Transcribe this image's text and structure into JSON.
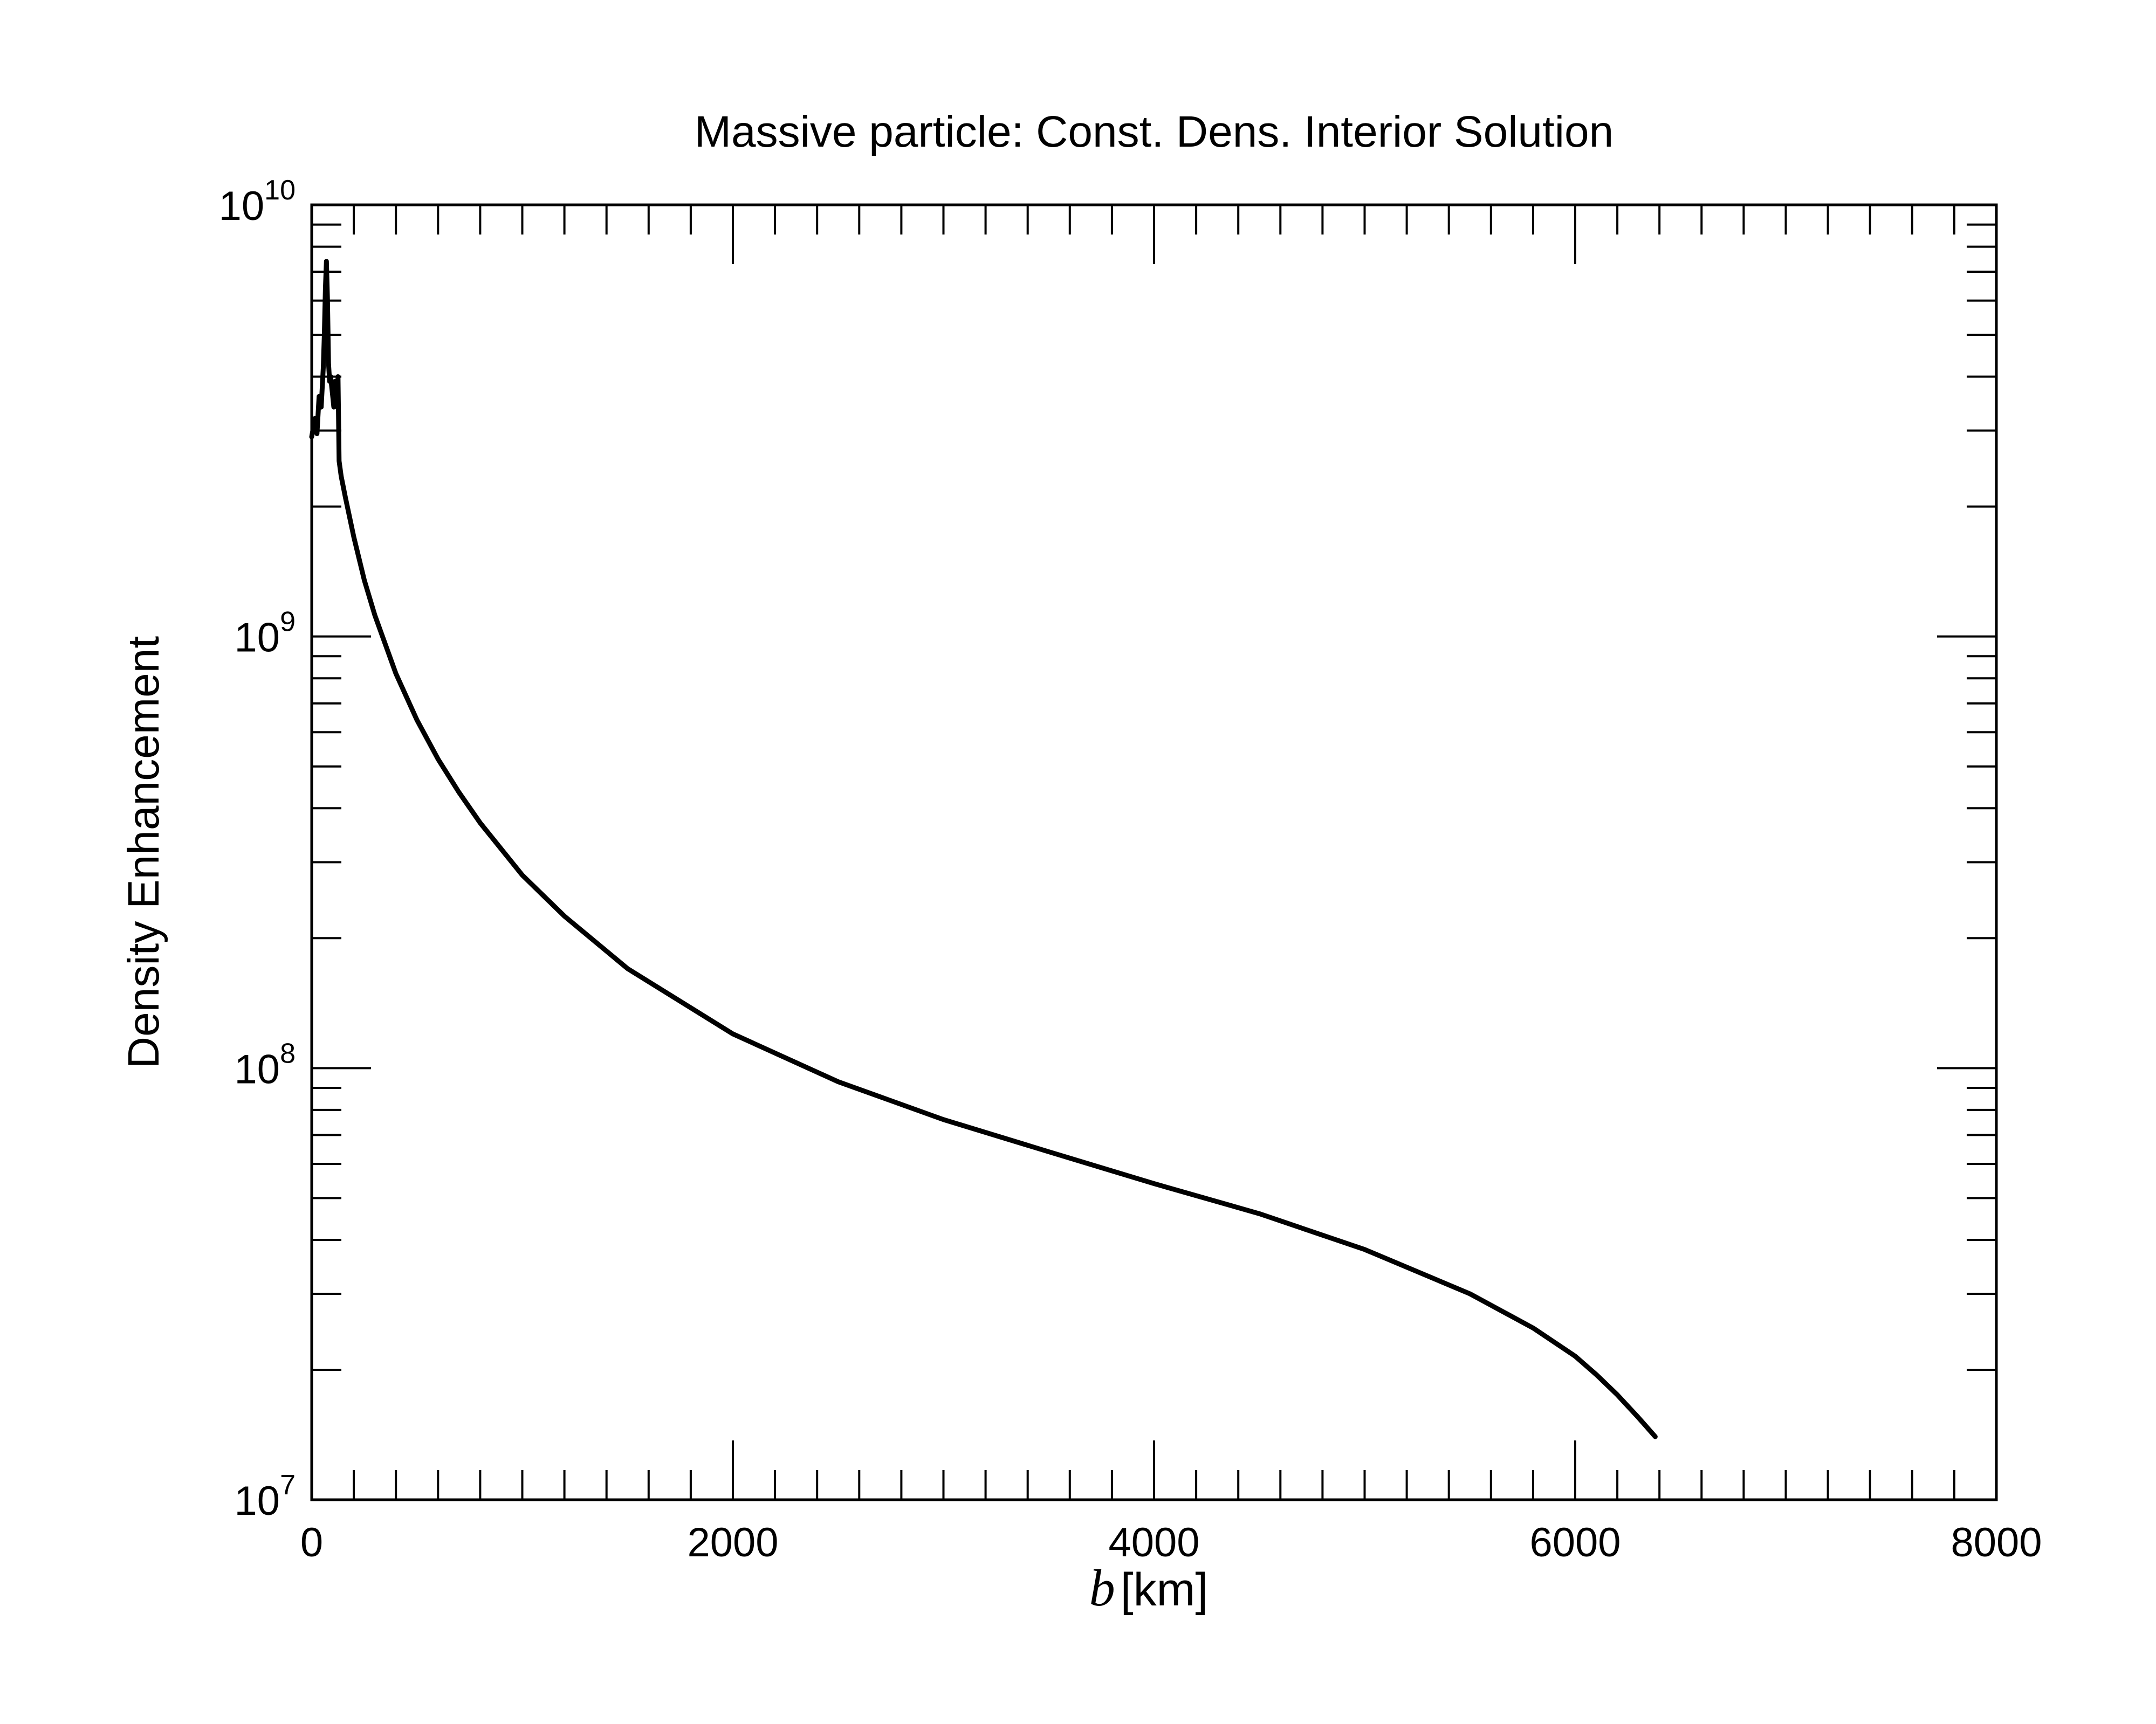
{
  "chart_data": {
    "type": "line",
    "title": "Massive particle: Const. Dens. Interior Solution",
    "xlabel": {
      "symbol": "b",
      "unit": "[km]"
    },
    "ylabel": "Density Enhancement",
    "xlim": [
      0,
      8000
    ],
    "ylim": [
      10000000,
      10000000000
    ],
    "yscale": "log",
    "x_ticks": [
      {
        "value": 0,
        "label": "0"
      },
      {
        "value": 2000,
        "label": "2000"
      },
      {
        "value": 4000,
        "label": "4000"
      },
      {
        "value": 6000,
        "label": "6000"
      },
      {
        "value": 8000,
        "label": "8000"
      }
    ],
    "y_ticks": [
      {
        "value": 10000000,
        "base": "10",
        "exp": "7"
      },
      {
        "value": 100000000,
        "base": "10",
        "exp": "8"
      },
      {
        "value": 1000000000,
        "base": "10",
        "exp": "9"
      },
      {
        "value": 10000000000,
        "base": "10",
        "exp": "10"
      }
    ],
    "grid": false,
    "legend": "none",
    "line_color": "#000000",
    "series": [
      {
        "x": [
          0,
          15,
          25,
          35,
          45,
          55,
          60,
          65,
          70,
          75,
          80,
          85,
          90,
          100,
          105,
          110,
          115,
          120,
          125,
          130,
          140,
          160,
          200,
          250,
          300,
          400,
          500,
          600,
          700,
          800,
          1000,
          1200,
          1500,
          2000,
          2500,
          3000,
          3500,
          4000,
          4500,
          5000,
          5500,
          5800,
          6000,
          6100,
          6200,
          6300,
          6380
        ],
        "y": [
          2900000000.0,
          3200000000.0,
          2950000000.0,
          3600000000.0,
          3400000000.0,
          4200000000.0,
          5000000000.0,
          6400000000.0,
          7400000000.0,
          6000000000.0,
          4300000000.0,
          3900000000.0,
          4000000000.0,
          3600000000.0,
          3400000000.0,
          3900000000.0,
          3900000000.0,
          3400000000.0,
          4000000000.0,
          2550000000.0,
          2350000000.0,
          2100000000.0,
          1700000000.0,
          1350000000.0,
          1120000000.0,
          820000000.0,
          640000000.0,
          520000000.0,
          435000000.0,
          370000000.0,
          280000000.0,
          225000000.0,
          170000000.0,
          120000000.0,
          93000000.0,
          76000000.0,
          64000000.0,
          54000000.0,
          46000000.0,
          38000000.0,
          30000000.0,
          25000000.0,
          21500000.0,
          19500000.0,
          17500000.0,
          15500000.0,
          14000000.0
        ]
      }
    ]
  }
}
